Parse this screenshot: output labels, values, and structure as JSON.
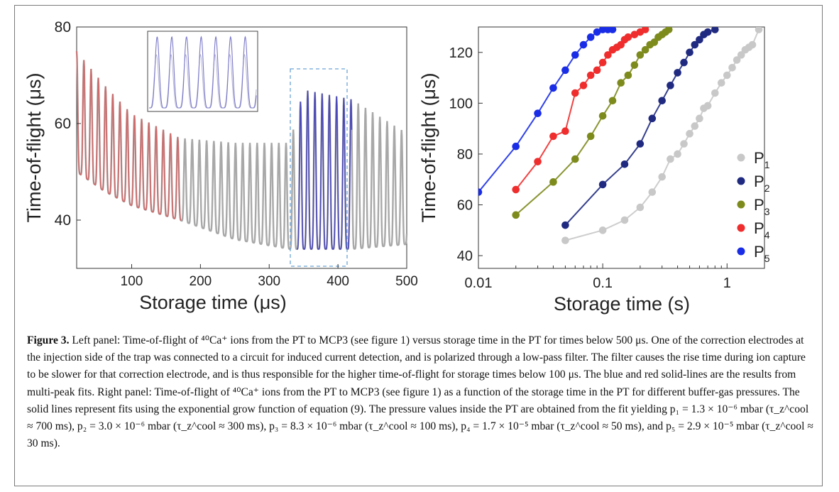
{
  "left_panel": {
    "ylabel": "Time-of-flight (μs)",
    "xlabel": "Storage time (μs)",
    "xticks": [
      "100",
      "200",
      "300",
      "400",
      "500"
    ],
    "yticks": [
      "40",
      "60",
      "80"
    ]
  },
  "right_panel": {
    "ylabel": "Time-of-flight (μs)",
    "xlabel": "Storage time (s)",
    "xticks": [
      "0.01",
      "0.1",
      "1"
    ],
    "yticks": [
      "40",
      "60",
      "80",
      "100",
      "120"
    ],
    "legend": [
      {
        "label": "P",
        "sub": "1"
      },
      {
        "label": "P",
        "sub": "2"
      },
      {
        "label": "P",
        "sub": "3"
      },
      {
        "label": "P",
        "sub": "4"
      },
      {
        "label": "P",
        "sub": "5"
      }
    ]
  },
  "caption": {
    "fig": "Figure 3.",
    "text": " Left panel: Time-of-flight of ⁴⁰Ca⁺ ions from the PT to MCP3 (see figure 1) versus storage time in the PT for times below 500 μs. One of the correction electrodes at the injection side of the trap was connected to a circuit for induced current detection, and is polarized through a low-pass filter. The filter causes the rise time during ion capture to be slower for that correction electrode, and is thus responsible for the higher time-of-flight for storage times below 100 μs. The blue and red solid-lines are the results from multi-peak fits. Right panel: Time-of-flight of ⁴⁰Ca⁺ ions from the PT to MCP3 (see figure 1) as a function of the storage time in the PT for different buffer-gas pressures. The solid lines represent fits using the exponential grow function of equation (9). The pressure values inside the PT are obtained from the fit yielding p₁ = 1.3 × 10⁻⁶ mbar (τ_z^cool ≈ 700 ms), p₂ = 3.0 × 10⁻⁶ mbar (τ_z^cool ≈ 300 ms), p₃ = 8.3 × 10⁻⁶ mbar (τ_z^cool ≈ 100 ms), p₄ = 1.7 × 10⁻⁵ mbar (τ_z^cool ≈ 50 ms), and p₅ = 2.9 × 10⁻⁵ mbar (τ_z^cool ≈ 30 ms)."
  },
  "colors": {
    "P1": "#c8c8c8",
    "P2": "#1f2a80",
    "P3": "#7d8a1c",
    "P4": "#ef2d2d",
    "P5": "#1a2de6",
    "left_red": "#d06a6a",
    "left_blue": "#4a48b8",
    "gray": "#a8a8a8"
  },
  "chart_data": [
    {
      "type": "line",
      "xlabel": "Storage time (μs)",
      "ylabel": "Time-of-flight (μs)",
      "xlim": [
        20,
        500
      ],
      "ylim": [
        30,
        80
      ],
      "oscillation_period_us": 10.5,
      "peak_envelope": {
        "x": [
          20,
          60,
          100,
          170,
          250,
          330,
          350,
          420,
          500
        ],
        "y": [
          75,
          68,
          62,
          57,
          56,
          56,
          67,
          65,
          58
        ]
      },
      "trough_envelope": {
        "x": [
          20,
          60,
          100,
          170,
          250,
          330,
          350,
          420,
          500
        ],
        "y": [
          50,
          46,
          43,
          40,
          36,
          34,
          34,
          34,
          35
        ]
      },
      "highlight_red_range": [
        20,
        172
      ],
      "highlight_blue_range": [
        340,
        420
      ],
      "inset_box": true
    },
    {
      "type": "scatter",
      "xlabel": "Storage time (s)",
      "ylabel": "Time-of-flight (μs)",
      "xscale": "log",
      "xlim": [
        0.01,
        2.0
      ],
      "ylim": [
        35,
        130
      ],
      "legend_position": "lower-right",
      "series": [
        {
          "name": "P1",
          "x": [
            0.05,
            0.1,
            0.15,
            0.2,
            0.25,
            0.3,
            0.35,
            0.4,
            0.45,
            0.5,
            0.55,
            0.6,
            0.65,
            0.7,
            0.8,
            0.9,
            1.0,
            1.1,
            1.2,
            1.3,
            1.4,
            1.5,
            1.6,
            1.8
          ],
          "y": [
            46,
            50,
            54,
            59,
            65,
            71,
            78,
            80,
            84,
            88,
            91,
            94,
            98,
            99,
            104,
            108,
            111,
            114,
            117,
            119,
            121,
            122,
            123,
            129
          ]
        },
        {
          "name": "P2",
          "x": [
            0.05,
            0.1,
            0.15,
            0.2,
            0.25,
            0.3,
            0.35,
            0.4,
            0.45,
            0.5,
            0.55,
            0.6,
            0.65,
            0.7,
            0.8
          ],
          "y": [
            52,
            68,
            76,
            84,
            94,
            101,
            107,
            112,
            116,
            120,
            123,
            125,
            127,
            128,
            129
          ]
        },
        {
          "name": "P3",
          "x": [
            0.02,
            0.04,
            0.06,
            0.08,
            0.1,
            0.12,
            0.14,
            0.16,
            0.18,
            0.2,
            0.22,
            0.24,
            0.26,
            0.28,
            0.3,
            0.32,
            0.34
          ],
          "y": [
            56,
            69,
            78,
            87,
            95,
            101,
            108,
            111,
            115,
            119,
            121,
            123,
            124,
            126,
            127,
            128,
            129
          ]
        },
        {
          "name": "P4",
          "x": [
            0.02,
            0.03,
            0.04,
            0.05,
            0.06,
            0.07,
            0.08,
            0.09,
            0.1,
            0.11,
            0.12,
            0.13,
            0.14,
            0.15,
            0.16,
            0.18,
            0.2,
            0.22
          ],
          "y": [
            66,
            77,
            87,
            89,
            104,
            107,
            111,
            113,
            116,
            119,
            121,
            122,
            123,
            125,
            126,
            127,
            128,
            129
          ]
        },
        {
          "name": "P5",
          "x": [
            0.01,
            0.02,
            0.03,
            0.04,
            0.05,
            0.06,
            0.07,
            0.08,
            0.09,
            0.1,
            0.11,
            0.12
          ],
          "y": [
            65,
            83,
            96,
            106,
            113,
            119,
            123,
            126,
            128,
            129,
            129,
            129
          ]
        }
      ]
    }
  ]
}
